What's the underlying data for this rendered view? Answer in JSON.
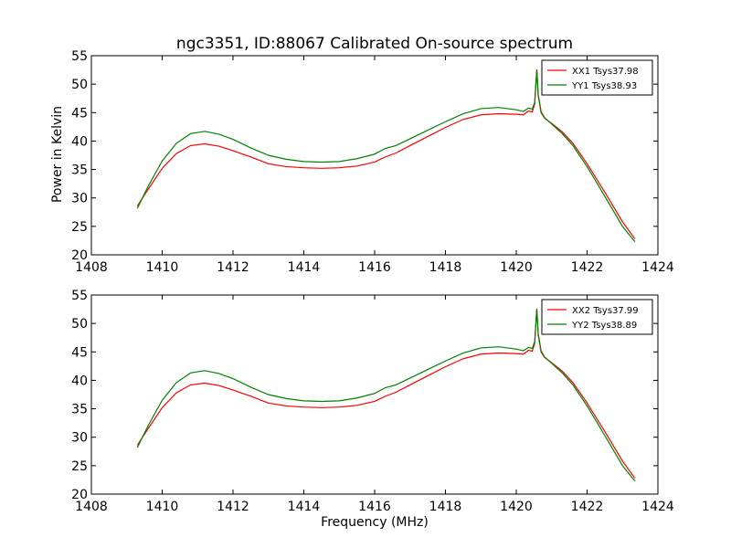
{
  "chart_data": [
    {
      "type": "line",
      "title": "ngc3351, ID:88067 Calibrated On-source spectrum",
      "xlabel": "",
      "ylabel": "Power in Kelvin",
      "xlim": [
        1408,
        1424
      ],
      "ylim": [
        20,
        55
      ],
      "xticks": [
        "1408",
        "1410",
        "1412",
        "1414",
        "1416",
        "1418",
        "1420",
        "1422",
        "1424"
      ],
      "yticks": [
        "20",
        "25",
        "30",
        "35",
        "40",
        "45",
        "50",
        "55"
      ],
      "legend": "top-right",
      "grid": false,
      "series": [
        {
          "name": "XX1 Tsys37.98",
          "color": "#ff0000",
          "x": [
            1409.3,
            1409.6,
            1410.0,
            1410.4,
            1410.8,
            1411.2,
            1411.6,
            1412.0,
            1412.5,
            1413.0,
            1413.5,
            1414.0,
            1414.5,
            1415.0,
            1415.5,
            1416.0,
            1416.3,
            1416.6,
            1417.0,
            1417.5,
            1418.0,
            1418.5,
            1419.0,
            1419.5,
            1420.0,
            1420.2,
            1420.35,
            1420.45,
            1420.52,
            1420.58,
            1420.62,
            1420.7,
            1420.8,
            1421.0,
            1421.3,
            1421.6,
            1422.0,
            1422.5,
            1423.0,
            1423.35
          ],
          "y": [
            28.6,
            31.5,
            35.2,
            37.8,
            39.2,
            39.5,
            39.1,
            38.3,
            37.2,
            36.0,
            35.5,
            35.3,
            35.2,
            35.3,
            35.6,
            36.3,
            37.2,
            37.9,
            39.2,
            40.8,
            42.4,
            43.8,
            44.6,
            44.8,
            44.7,
            44.6,
            45.3,
            45.1,
            46.5,
            52.5,
            48.0,
            45.0,
            44.0,
            43.1,
            41.6,
            39.6,
            36.0,
            31.0,
            25.8,
            22.8
          ]
        },
        {
          "name": "YY1 Tsys38.93",
          "color": "#008000",
          "x": [
            1409.3,
            1409.6,
            1410.0,
            1410.4,
            1410.8,
            1411.2,
            1411.6,
            1412.0,
            1412.5,
            1413.0,
            1413.5,
            1414.0,
            1414.5,
            1415.0,
            1415.5,
            1416.0,
            1416.3,
            1416.6,
            1417.0,
            1417.5,
            1418.0,
            1418.5,
            1419.0,
            1419.5,
            1420.0,
            1420.2,
            1420.35,
            1420.45,
            1420.52,
            1420.58,
            1420.62,
            1420.7,
            1420.8,
            1421.0,
            1421.3,
            1421.6,
            1422.0,
            1422.5,
            1423.0,
            1423.35
          ],
          "y": [
            28.2,
            32.0,
            36.5,
            39.6,
            41.3,
            41.7,
            41.2,
            40.3,
            38.8,
            37.5,
            36.8,
            36.4,
            36.3,
            36.4,
            36.9,
            37.7,
            38.7,
            39.2,
            40.4,
            41.9,
            43.4,
            44.8,
            45.7,
            45.9,
            45.5,
            45.2,
            45.8,
            45.6,
            46.8,
            52.6,
            48.2,
            45.2,
            44.1,
            43.0,
            41.3,
            39.2,
            35.5,
            30.3,
            25.0,
            22.3
          ]
        }
      ]
    },
    {
      "type": "line",
      "title": "",
      "xlabel": "Frequency (MHz)",
      "ylabel": "",
      "xlim": [
        1408,
        1424
      ],
      "ylim": [
        20,
        55
      ],
      "xticks": [
        "1408",
        "1410",
        "1412",
        "1414",
        "1416",
        "1418",
        "1420",
        "1422",
        "1424"
      ],
      "yticks": [
        "20",
        "25",
        "30",
        "35",
        "40",
        "45",
        "50",
        "55"
      ],
      "legend": "top-right",
      "grid": false,
      "series": [
        {
          "name": "XX2 Tsys37.99",
          "color": "#ff0000",
          "x": [
            1409.3,
            1409.6,
            1410.0,
            1410.4,
            1410.8,
            1411.2,
            1411.6,
            1412.0,
            1412.5,
            1413.0,
            1413.5,
            1414.0,
            1414.5,
            1415.0,
            1415.5,
            1416.0,
            1416.3,
            1416.6,
            1417.0,
            1417.5,
            1418.0,
            1418.5,
            1419.0,
            1419.5,
            1420.0,
            1420.2,
            1420.35,
            1420.45,
            1420.52,
            1420.58,
            1420.62,
            1420.7,
            1420.8,
            1421.0,
            1421.3,
            1421.6,
            1422.0,
            1422.5,
            1423.0,
            1423.35
          ],
          "y": [
            28.6,
            31.5,
            35.2,
            37.8,
            39.2,
            39.5,
            39.1,
            38.3,
            37.2,
            36.0,
            35.5,
            35.3,
            35.2,
            35.3,
            35.6,
            36.3,
            37.2,
            37.9,
            39.2,
            40.8,
            42.4,
            43.8,
            44.6,
            44.8,
            44.7,
            44.6,
            45.3,
            45.1,
            46.5,
            52.5,
            48.0,
            45.0,
            44.0,
            43.1,
            41.6,
            39.6,
            36.0,
            31.0,
            25.8,
            22.8
          ]
        },
        {
          "name": "YY2 Tsys38.89",
          "color": "#008000",
          "x": [
            1409.3,
            1409.6,
            1410.0,
            1410.4,
            1410.8,
            1411.2,
            1411.6,
            1412.0,
            1412.5,
            1413.0,
            1413.5,
            1414.0,
            1414.5,
            1415.0,
            1415.5,
            1416.0,
            1416.3,
            1416.6,
            1417.0,
            1417.5,
            1418.0,
            1418.5,
            1419.0,
            1419.5,
            1420.0,
            1420.2,
            1420.35,
            1420.45,
            1420.52,
            1420.58,
            1420.62,
            1420.7,
            1420.8,
            1421.0,
            1421.3,
            1421.6,
            1422.0,
            1422.5,
            1423.0,
            1423.35
          ],
          "y": [
            28.2,
            32.0,
            36.5,
            39.6,
            41.3,
            41.7,
            41.2,
            40.3,
            38.8,
            37.5,
            36.8,
            36.4,
            36.3,
            36.4,
            36.9,
            37.7,
            38.7,
            39.2,
            40.4,
            41.9,
            43.4,
            44.8,
            45.7,
            45.9,
            45.5,
            45.2,
            45.8,
            45.6,
            46.8,
            52.6,
            48.2,
            45.2,
            44.1,
            43.0,
            41.3,
            39.2,
            35.5,
            30.3,
            25.0,
            22.3
          ]
        }
      ]
    }
  ]
}
